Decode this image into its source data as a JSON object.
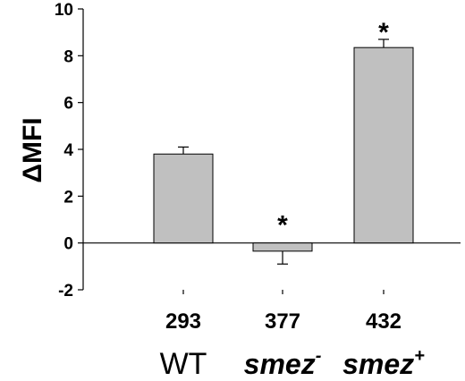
{
  "chart_data": {
    "type": "bar",
    "ylabel": "ΔMFI",
    "ylim": [
      -2,
      10
    ],
    "yticks": [
      -2,
      0,
      2,
      4,
      6,
      8,
      10
    ],
    "categories": [
      {
        "number": "293",
        "name": "WT",
        "base": "",
        "sup": ""
      },
      {
        "number": "377",
        "name": "",
        "base": "smez",
        "sup": "-"
      },
      {
        "number": "432",
        "name": "",
        "base": "smez",
        "sup": "+"
      }
    ],
    "values": [
      3.8,
      -0.35,
      8.35
    ],
    "errors": [
      0.3,
      0.55,
      0.35
    ],
    "error_direction": [
      "up",
      "down",
      "up"
    ],
    "annotations": [
      "",
      "*",
      "*"
    ],
    "bar_color": "#c0c0c0",
    "bar_edge": "#000000"
  }
}
